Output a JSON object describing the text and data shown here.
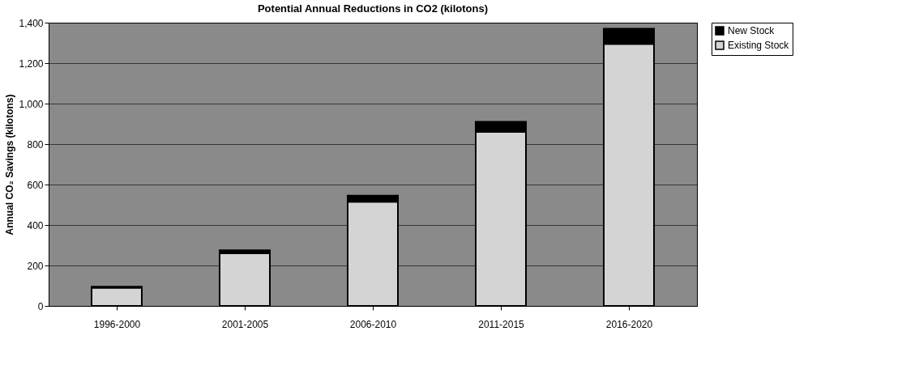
{
  "chart_data": {
    "type": "bar",
    "title": "Potential Annual Reductions in CO2 (kilotons)",
    "ylabel": "Annual CO₂ Savings (kilotons)",
    "categories": [
      "1996-2000",
      "2001-2005",
      "2006-2010",
      "2011-2015",
      "2016-2020"
    ],
    "stacked": true,
    "series": [
      {
        "name": "Existing Stock",
        "color": "#d4d4d4",
        "values": [
          90,
          260,
          515,
          860,
          1295
        ]
      },
      {
        "name": "New Stock",
        "color": "#000000",
        "values": [
          5,
          15,
          30,
          50,
          75
        ]
      }
    ],
    "ylim": [
      0,
      1400
    ],
    "yticks": [
      0,
      200,
      400,
      600,
      800,
      {
        "value": 1000,
        "label": "1,000"
      },
      {
        "value": 1200,
        "label": "1,200"
      },
      {
        "value": 1400,
        "label": "1,400"
      }
    ],
    "grid": "y",
    "legend": "right"
  }
}
